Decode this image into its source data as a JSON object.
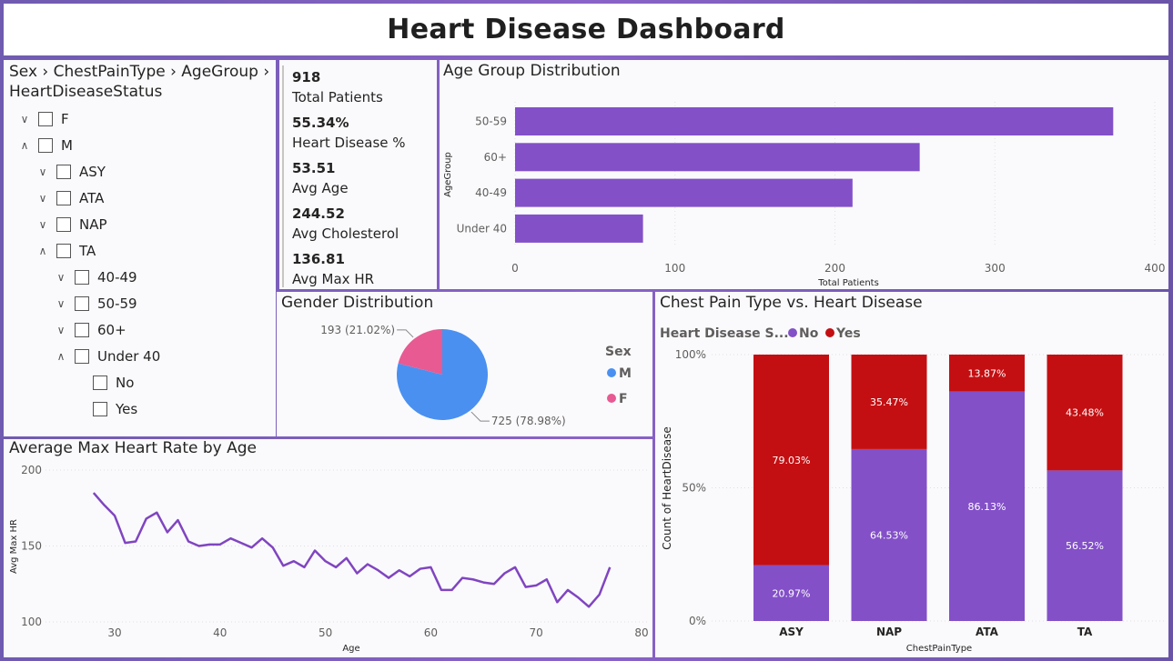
{
  "title": "Heart Disease Dashboard",
  "slicer": {
    "header": "Sex › ChestPainType › AgeGroup › HeartDiseaseStatus",
    "items": [
      {
        "label": "F",
        "level": 0,
        "chev": "v"
      },
      {
        "label": "M",
        "level": 0,
        "chev": "^"
      },
      {
        "label": "ASY",
        "level": 1,
        "chev": "v"
      },
      {
        "label": "ATA",
        "level": 1,
        "chev": "v"
      },
      {
        "label": "NAP",
        "level": 1,
        "chev": "v"
      },
      {
        "label": "TA",
        "level": 1,
        "chev": "^"
      },
      {
        "label": "40-49",
        "level": 2,
        "chev": "v"
      },
      {
        "label": "50-59",
        "level": 2,
        "chev": "v"
      },
      {
        "label": "60+",
        "level": 2,
        "chev": "v"
      },
      {
        "label": "Under 40",
        "level": 2,
        "chev": "^"
      },
      {
        "label": "No",
        "level": 3,
        "chev": ""
      },
      {
        "label": "Yes",
        "level": 3,
        "chev": ""
      }
    ]
  },
  "cards": [
    {
      "value": "918",
      "label": "Total Patients"
    },
    {
      "value": "55.34%",
      "label": "Heart Disease %"
    },
    {
      "value": "53.51",
      "label": "Avg Age"
    },
    {
      "value": "244.52",
      "label": "Avg Cholesterol"
    },
    {
      "value": "136.81",
      "label": "Avg Max HR"
    }
  ],
  "colors": {
    "purple": "#8350c8",
    "red": "#c40f12",
    "blue": "#4a90f0",
    "pink": "#e75a92",
    "line": "#8045c0"
  },
  "chart_data": [
    {
      "id": "age_group",
      "type": "bar",
      "orientation": "horizontal",
      "title": "Age Group Distribution",
      "categories": [
        "50-59",
        "60+",
        "40-49",
        "Under 40"
      ],
      "values": [
        374,
        253,
        211,
        80
      ],
      "xlabel": "Total Patients",
      "ylabel": "AgeGroup",
      "xlim": [
        0,
        400
      ],
      "xticks": [
        "0",
        "100",
        "200",
        "300",
        "400"
      ]
    },
    {
      "id": "gender",
      "type": "pie",
      "title": "Gender Distribution",
      "legend_title": "Sex",
      "slices": [
        {
          "name": "M",
          "value": 725,
          "label": "725 (78.98%)"
        },
        {
          "name": "F",
          "value": 193,
          "label": "193 (21.02%)"
        }
      ]
    },
    {
      "id": "chest_pain",
      "type": "bar",
      "stacked": "100%",
      "title": "Chest Pain Type vs. Heart Disease",
      "legend_title": "Heart Disease S...",
      "categories": [
        "ASY",
        "NAP",
        "ATA",
        "TA"
      ],
      "series": [
        {
          "name": "No",
          "values": [
            20.97,
            64.53,
            86.13,
            56.52
          ],
          "labels": [
            "20.97%",
            "64.53%",
            "86.13%",
            "56.52%"
          ]
        },
        {
          "name": "Yes",
          "values": [
            79.03,
            35.47,
            13.87,
            43.48
          ],
          "labels": [
            "79.03%",
            "35.47%",
            "13.87%",
            "43.48%"
          ]
        }
      ],
      "xlabel": "ChestPainType",
      "ylabel": "Count of HeartDisease",
      "yticks": [
        "0%",
        "50%",
        "100%"
      ]
    },
    {
      "id": "max_hr",
      "type": "line",
      "title": "Average Max Heart Rate by Age",
      "xlabel": "Age",
      "ylabel": "Avg Max HR",
      "xlim": [
        28,
        80
      ],
      "ylim": [
        100,
        200
      ],
      "xticks": [
        30,
        40,
        50,
        60,
        70,
        80
      ],
      "yticks": [
        100,
        150,
        200
      ],
      "x": [
        28,
        29,
        30,
        31,
        32,
        33,
        34,
        35,
        36,
        37,
        38,
        39,
        40,
        41,
        42,
        43,
        44,
        45,
        46,
        47,
        48,
        49,
        50,
        51,
        52,
        53,
        54,
        55,
        56,
        57,
        58,
        59,
        60,
        61,
        62,
        63,
        64,
        65,
        66,
        67,
        68,
        69,
        70,
        71,
        72,
        73,
        74,
        75,
        76,
        77
      ],
      "y": [
        185,
        177,
        170,
        152,
        153,
        168,
        172,
        159,
        167,
        153,
        150,
        151,
        151,
        155,
        152,
        149,
        155,
        149,
        137,
        140,
        136,
        147,
        140,
        136,
        142,
        132,
        138,
        134,
        129,
        134,
        130,
        135,
        136,
        121,
        121,
        129,
        128,
        126,
        125,
        132,
        136,
        123,
        124,
        128,
        113,
        121,
        116,
        110,
        118,
        136
      ]
    }
  ]
}
